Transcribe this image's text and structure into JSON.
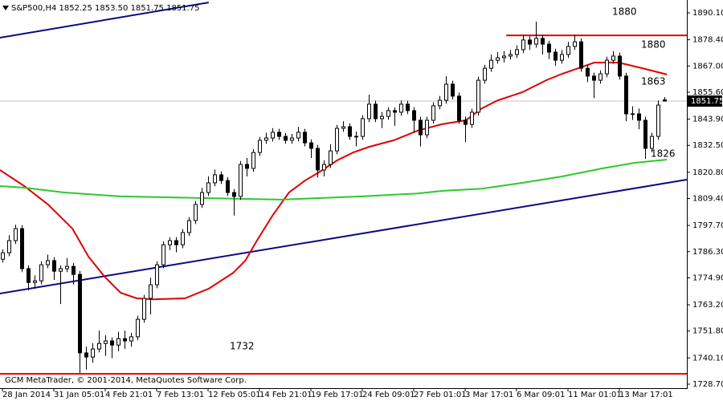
{
  "chart_data": {
    "type": "candlestick",
    "title": "S&P500,H4 1852.25 1853.50 1851.75 1851.75",
    "footer": "GCM MetaTrader, © 2001-2014, MetaQuotes Software Corp.",
    "up_color": "#ffffff",
    "down_color": "#000000",
    "candle_color": "#000000",
    "categories": [
      "28 Jan 2014",
      null,
      null,
      null,
      null,
      null,
      null,
      null,
      "31 Jan 05:01",
      null,
      null,
      null,
      null,
      null,
      null,
      null,
      "4 Feb 21:01",
      null,
      null,
      null,
      null,
      null,
      null,
      null,
      "7 Feb 13:01",
      null,
      null,
      null,
      null,
      null,
      null,
      null,
      "12 Feb 05:01",
      null,
      null,
      null,
      null,
      null,
      null,
      null,
      "14 Feb 21:01",
      null,
      null,
      null,
      null,
      null,
      null,
      null,
      "19 Feb 17:01",
      null,
      null,
      null,
      null,
      null,
      null,
      null,
      "24 Feb 09:01",
      null,
      null,
      null,
      null,
      null,
      null,
      null,
      "27 Feb 01:01",
      null,
      null,
      null,
      null,
      null,
      null,
      null,
      "3 Mar 17:01",
      null,
      null,
      null,
      null,
      null,
      null,
      null,
      "6 Mar 09:01",
      null,
      null,
      null,
      null,
      null,
      null,
      null,
      "11 Mar 01:01",
      null,
      null,
      null,
      null,
      null,
      null,
      null,
      "13 Mar 17:01",
      null,
      null,
      null,
      null,
      null,
      null,
      null
    ],
    "candles": [
      [
        1783.0,
        1787.3,
        1781.5,
        1785.8
      ],
      [
        1785.8,
        1793.5,
        1784.3,
        1791.1
      ],
      [
        1791.1,
        1798.0,
        1789.6,
        1796.3
      ],
      [
        1796.3,
        1797.8,
        1777.4,
        1778.9
      ],
      [
        1778.9,
        1780.4,
        1769.5,
        1772.9
      ],
      [
        1772.9,
        1776.0,
        1770.2,
        1773.6
      ],
      [
        1773.6,
        1782.1,
        1772.1,
        1780.6
      ],
      [
        1780.6,
        1785.0,
        1779.1,
        1782.4
      ],
      [
        1782.4,
        1783.9,
        1774.0,
        1777.8
      ],
      [
        1777.8,
        1780.4,
        1763.5,
        1778.9
      ],
      [
        1778.9,
        1783.5,
        1777.4,
        1779.9
      ],
      [
        1779.9,
        1781.4,
        1772.0,
        1776.4
      ],
      [
        1776.4,
        1777.9,
        1733.5,
        1742.3
      ],
      [
        1742.3,
        1745.0,
        1735.0,
        1740.5
      ],
      [
        1740.5,
        1746.5,
        1738.0,
        1744.0
      ],
      [
        1744.0,
        1752.0,
        1742.5,
        1746.4
      ],
      [
        1746.4,
        1750.0,
        1741.0,
        1747.5
      ],
      [
        1747.5,
        1749.0,
        1740.0,
        1745.7
      ],
      [
        1745.7,
        1751.5,
        1743.0,
        1748.5
      ],
      [
        1748.5,
        1752.0,
        1744.0,
        1747.5
      ],
      [
        1747.5,
        1751.0,
        1745.0,
        1749.3
      ],
      [
        1749.3,
        1758.4,
        1747.8,
        1756.9
      ],
      [
        1756.9,
        1767.5,
        1755.4,
        1766.0
      ],
      [
        1766.0,
        1775.0,
        1759.0,
        1771.9
      ],
      [
        1771.9,
        1782.1,
        1770.4,
        1780.6
      ],
      [
        1780.6,
        1790.8,
        1779.1,
        1789.3
      ],
      [
        1789.3,
        1792.6,
        1787.0,
        1791.1
      ],
      [
        1791.1,
        1792.6,
        1786.0,
        1789.3
      ],
      [
        1789.3,
        1796.1,
        1787.8,
        1794.6
      ],
      [
        1794.6,
        1801.3,
        1793.1,
        1799.8
      ],
      [
        1799.8,
        1808.3,
        1798.3,
        1806.8
      ],
      [
        1806.8,
        1814.0,
        1805.3,
        1812.0
      ],
      [
        1812.0,
        1819.0,
        1810.5,
        1816.2
      ],
      [
        1816.2,
        1822.0,
        1814.7,
        1819.7
      ],
      [
        1819.7,
        1821.2,
        1815.7,
        1817.2
      ],
      [
        1817.2,
        1818.7,
        1810.5,
        1812.0
      ],
      [
        1812.0,
        1813.5,
        1802.0,
        1810.3
      ],
      [
        1810.3,
        1825.7,
        1808.8,
        1824.2
      ],
      [
        1824.2,
        1827.0,
        1819.0,
        1822.5
      ],
      [
        1822.5,
        1830.9,
        1821.0,
        1829.4
      ],
      [
        1829.4,
        1836.2,
        1827.9,
        1834.7
      ],
      [
        1834.7,
        1838.0,
        1833.2,
        1835.7
      ],
      [
        1835.7,
        1840.0,
        1834.2,
        1838.2
      ],
      [
        1838.2,
        1839.7,
        1834.9,
        1836.4
      ],
      [
        1836.4,
        1837.9,
        1833.2,
        1834.7
      ],
      [
        1834.7,
        1837.5,
        1833.2,
        1835.7
      ],
      [
        1835.7,
        1840.5,
        1834.2,
        1838.2
      ],
      [
        1838.2,
        1839.7,
        1832.1,
        1833.6
      ],
      [
        1833.6,
        1835.1,
        1827.0,
        1831.2
      ],
      [
        1831.2,
        1832.7,
        1818.5,
        1821.8
      ],
      [
        1821.8,
        1826.0,
        1819.0,
        1824.2
      ],
      [
        1824.2,
        1833.0,
        1822.7,
        1830.1
      ],
      [
        1830.1,
        1841.4,
        1828.6,
        1839.9
      ],
      [
        1839.9,
        1843.0,
        1838.4,
        1840.6
      ],
      [
        1840.6,
        1842.1,
        1834.9,
        1836.4
      ],
      [
        1836.4,
        1838.5,
        1832.0,
        1836.4
      ],
      [
        1836.4,
        1845.6,
        1834.9,
        1844.1
      ],
      [
        1844.1,
        1854.5,
        1842.6,
        1850.4
      ],
      [
        1850.4,
        1851.9,
        1842.6,
        1844.1
      ],
      [
        1844.1,
        1847.0,
        1840.0,
        1845.1
      ],
      [
        1845.1,
        1849.1,
        1843.6,
        1847.6
      ],
      [
        1847.6,
        1849.0,
        1841.0,
        1846.9
      ],
      [
        1846.9,
        1852.0,
        1845.4,
        1850.4
      ],
      [
        1850.4,
        1851.9,
        1846.1,
        1847.6
      ],
      [
        1847.6,
        1849.1,
        1838.0,
        1843.4
      ],
      [
        1843.4,
        1844.9,
        1832.0,
        1837.1
      ],
      [
        1837.1,
        1844.9,
        1835.6,
        1843.4
      ],
      [
        1843.4,
        1851.2,
        1841.9,
        1849.7
      ],
      [
        1849.7,
        1854.0,
        1848.2,
        1852.1
      ],
      [
        1852.1,
        1862.5,
        1850.6,
        1859.1
      ],
      [
        1859.1,
        1860.6,
        1852.4,
        1853.9
      ],
      [
        1853.9,
        1855.4,
        1841.9,
        1843.4
      ],
      [
        1843.4,
        1845.0,
        1834.0,
        1841.6
      ],
      [
        1841.6,
        1848.4,
        1840.1,
        1846.9
      ],
      [
        1846.9,
        1862.3,
        1845.4,
        1860.8
      ],
      [
        1860.8,
        1867.5,
        1859.3,
        1866.0
      ],
      [
        1866.0,
        1872.0,
        1864.5,
        1869.5
      ],
      [
        1869.5,
        1873.0,
        1868.0,
        1870.6
      ],
      [
        1870.6,
        1873.5,
        1868.5,
        1871.3
      ],
      [
        1871.3,
        1874.0,
        1869.8,
        1872.0
      ],
      [
        1872.0,
        1876.0,
        1870.5,
        1874.1
      ],
      [
        1874.1,
        1880.5,
        1872.6,
        1878.3
      ],
      [
        1878.3,
        1880.0,
        1874.0,
        1876.5
      ],
      [
        1876.5,
        1886.3,
        1875.0,
        1879.0
      ],
      [
        1879.0,
        1880.5,
        1872.0,
        1876.5
      ],
      [
        1876.5,
        1878.0,
        1870.0,
        1873.0
      ],
      [
        1873.0,
        1874.5,
        1867.0,
        1869.5
      ],
      [
        1869.5,
        1874.0,
        1868.0,
        1872.0
      ],
      [
        1872.0,
        1877.5,
        1870.5,
        1875.5
      ],
      [
        1875.5,
        1880.5,
        1874.0,
        1877.5
      ],
      [
        1877.5,
        1879.0,
        1864.5,
        1866.0
      ],
      [
        1866.0,
        1867.5,
        1860.0,
        1862.6
      ],
      [
        1862.6,
        1864.1,
        1853.0,
        1860.8
      ],
      [
        1860.8,
        1865.1,
        1859.3,
        1863.6
      ],
      [
        1863.6,
        1871.0,
        1862.1,
        1869.5
      ],
      [
        1869.5,
        1873.5,
        1868.0,
        1871.3
      ],
      [
        1871.3,
        1872.8,
        1861.1,
        1862.6
      ],
      [
        1862.6,
        1864.1,
        1843.0,
        1846.2
      ],
      [
        1846.2,
        1849.5,
        1843.5,
        1846.2
      ],
      [
        1846.2,
        1848.5,
        1839.5,
        1843.4
      ],
      [
        1843.4,
        1844.9,
        1826.6,
        1831.2
      ],
      [
        1831.2,
        1838.0,
        1829.5,
        1836.4
      ],
      [
        1836.4,
        1852.0,
        1834.9,
        1850.0
      ],
      [
        1852.25,
        1853.5,
        1851.75,
        1851.75
      ]
    ],
    "moving_averages": [
      {
        "color": "#e00000",
        "x": [
          -0.4,
          3.4,
          7.1,
          10.9,
          13.4,
          15.9,
          18.4,
          20.9,
          23.4,
          28.4,
          32.1,
          35.9,
          37.8,
          39.6,
          42.1,
          44.6,
          47.1,
          49.6,
          52.1,
          54.6,
          57.1,
          60.9,
          64.6,
          68.4,
          72.1,
          74.6,
          77.1,
          80.9,
          84.6,
          87.1,
          89.6,
          92.1,
          95.9,
          99.6,
          103.4
        ],
        "values": [
          1821.8,
          1814.8,
          1806.8,
          1796.3,
          1784.1,
          1775.4,
          1768.4,
          1766.0,
          1765.6,
          1766.0,
          1770.2,
          1777.1,
          1782.4,
          1791.1,
          1802.3,
          1812.0,
          1817.2,
          1821.4,
          1826.0,
          1829.4,
          1831.9,
          1834.7,
          1838.9,
          1841.7,
          1843.4,
          1848.6,
          1852.1,
          1855.6,
          1860.8,
          1863.6,
          1866.0,
          1868.5,
          1868.5,
          1866.0,
          1863.3
        ]
      },
      {
        "color": "#2ec82e",
        "x": [
          -0.4,
          3.4,
          9.6,
          18.4,
          30.9,
          43.4,
          55.9,
          64.6,
          68.4,
          74.6,
          80.9,
          87.1,
          93.4,
          98.4,
          103.4
        ],
        "values": [
          1814.8,
          1814.1,
          1812.0,
          1810.3,
          1809.6,
          1808.9,
          1810.3,
          1811.6,
          1812.7,
          1813.7,
          1816.2,
          1819.0,
          1822.5,
          1824.9,
          1826.3
        ]
      }
    ],
    "lines": [
      {
        "color": "#0a0a80",
        "x": [
          -0.4,
          32.1
        ],
        "values": [
          1879.3,
          1894.6
        ]
      },
      {
        "color": "#0a0a80",
        "x": [
          -0.4,
          106.5
        ],
        "values": [
          1768.1,
          1817.6
        ]
      },
      {
        "color": "#e00000",
        "x": [
          78.4,
          106.5
        ],
        "values": [
          1880.3,
          1880.3
        ]
      },
      {
        "color": "#e00000",
        "x": [
          -0.4,
          106.5
        ],
        "values": [
          1733.2,
          1733.2
        ]
      }
    ],
    "current_price": 1851.75,
    "annotations": [
      "1880",
      "1880",
      "1863",
      "1826",
      "1732"
    ],
    "xlim": [
      -0.375,
      106.5
    ],
    "ylim": [
      1726.96,
      1895.68
    ],
    "yticks": [
      {
        "value": 1890.1,
        "label": "1890.10"
      },
      {
        "value": 1878.4,
        "label": "1878.40"
      },
      {
        "value": 1867,
        "label": "1867.00"
      },
      {
        "value": 1855.6,
        "label": "1855.60"
      },
      {
        "value": 1843.9,
        "label": "1843.90"
      },
      {
        "value": 1832.5,
        "label": "1832.50"
      },
      {
        "value": 1820.8,
        "label": "1820.80"
      },
      {
        "value": 1809.4,
        "label": "1809.40"
      },
      {
        "value": 1797.7,
        "label": "1797.70"
      },
      {
        "value": 1786.3,
        "label": "1786.30"
      },
      {
        "value": 1774.9,
        "label": "1774.90"
      },
      {
        "value": 1763.2,
        "label": "1763.20"
      },
      {
        "value": 1751.8,
        "label": "1751.80"
      },
      {
        "value": 1740.1,
        "label": "1740.10"
      },
      {
        "value": 1728.7,
        "label": "1728.70"
      }
    ]
  }
}
